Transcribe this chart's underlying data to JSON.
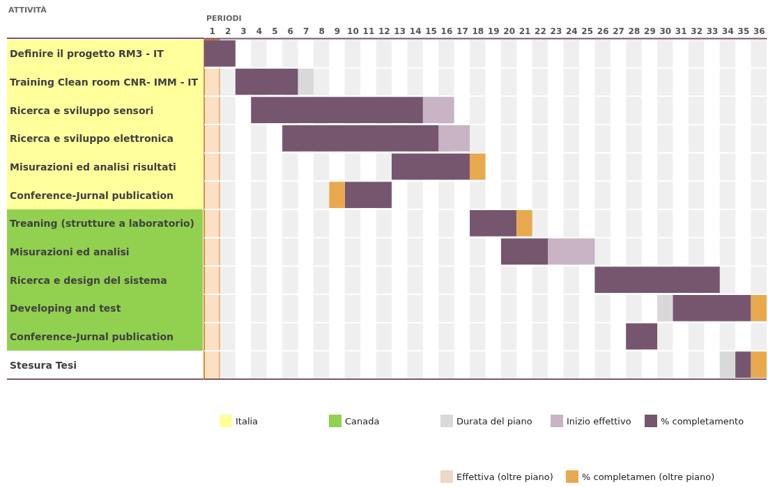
{
  "chart_data": {
    "type": "bar",
    "orientation": "horizontal",
    "xlabel": "PERIODI",
    "ylabel": "ATTIVITÀ",
    "categories": [
      "Definire il progetto RM3 - IT",
      "Training Clean room CNR- IMM - IT",
      "Ricerca e sviluppo sensori",
      "Ricerca e sviluppo elettronica",
      "Misurazioni ed analisi risultati",
      "Conference-Jurnal publication",
      "Treaning (strutture a laboratorio)",
      "Misurazioni ed analisi",
      "Ricerca e design del sistema",
      "Developing and test",
      "Conference-Jurnal publication",
      "Stesura Tesi"
    ],
    "xlim": [
      0,
      36
    ],
    "xticks": [
      {
        "value": 0.5,
        "label": "1"
      },
      {
        "value": 1.5,
        "label": "2"
      },
      {
        "value": 2.5,
        "label": "3"
      },
      {
        "value": 3.5,
        "label": "4"
      },
      {
        "value": 4.5,
        "label": "5"
      },
      {
        "value": 5.5,
        "label": "6"
      },
      {
        "value": 6.5,
        "label": "7"
      },
      {
        "value": 7.5,
        "label": "8"
      },
      {
        "value": 8.5,
        "label": "9"
      },
      {
        "value": 9.5,
        "label": "10"
      },
      {
        "value": 10.5,
        "label": "11"
      },
      {
        "value": 11.5,
        "label": "12"
      },
      {
        "value": 12.5,
        "label": "13"
      },
      {
        "value": 13.5,
        "label": "14"
      },
      {
        "value": 14.5,
        "label": "15"
      },
      {
        "value": 15.5,
        "label": "16"
      },
      {
        "value": 16.5,
        "label": "17"
      },
      {
        "value": 17.5,
        "label": "18"
      },
      {
        "value": 18.5,
        "label": "19"
      },
      {
        "value": 19.5,
        "label": "20"
      },
      {
        "value": 20.5,
        "label": "21"
      },
      {
        "value": 21.5,
        "label": "22"
      },
      {
        "value": 22.5,
        "label": "23"
      },
      {
        "value": 23.5,
        "label": "24"
      },
      {
        "value": 24.5,
        "label": "25"
      },
      {
        "value": 25.5,
        "label": "26"
      },
      {
        "value": 26.5,
        "label": "27"
      },
      {
        "value": 27.5,
        "label": "28"
      },
      {
        "value": 28.5,
        "label": "29"
      },
      {
        "value": 29.5,
        "label": "30"
      },
      {
        "value": 30.5,
        "label": "31"
      },
      {
        "value": 31.5,
        "label": "32"
      },
      {
        "value": 32.5,
        "label": "33"
      },
      {
        "value": 33.5,
        "label": "34"
      },
      {
        "value": 34.5,
        "label": "35"
      },
      {
        "value": 35.5,
        "label": "36"
      }
    ],
    "series": [
      {
        "name": "Italia",
        "color": "#ffff9c",
        "values": [
          null,
          null,
          null,
          null,
          null,
          null,
          null,
          null,
          null,
          null,
          null,
          null
        ]
      },
      {
        "name": "Canada",
        "color": "#92d050",
        "values": [
          null,
          null,
          null,
          null,
          null,
          null,
          null,
          null,
          null,
          null,
          null,
          null
        ]
      },
      {
        "name": "Durata del piano",
        "color": "#d9d9d9",
        "base": [
          null,
          6,
          null,
          null,
          null,
          null,
          null,
          null,
          null,
          29,
          null,
          33
        ],
        "values": [
          null,
          1,
          null,
          null,
          null,
          null,
          null,
          null,
          null,
          1,
          null,
          1
        ]
      },
      {
        "name": "Inizio effettivo",
        "color": "#c8b4c4",
        "base": [
          null,
          null,
          14,
          15,
          null,
          null,
          null,
          22,
          null,
          null,
          null,
          null
        ],
        "values": [
          null,
          null,
          2,
          2,
          null,
          null,
          null,
          3,
          null,
          null,
          null,
          null
        ]
      },
      {
        "name": "% completamento",
        "color": "#76566f",
        "base": [
          0,
          2,
          3,
          5,
          12,
          9,
          17,
          19,
          25,
          30,
          27,
          34
        ],
        "values": [
          2,
          4,
          11,
          10,
          5,
          3,
          3,
          3,
          8,
          5,
          2,
          1
        ]
      },
      {
        "name": "Effettiva (oltre piano)",
        "color": "#ead9c6",
        "base": [
          null,
          null,
          null,
          null,
          null,
          null,
          null,
          null,
          null,
          null,
          null,
          null
        ],
        "values": [
          null,
          null,
          null,
          null,
          null,
          null,
          null,
          null,
          null,
          null,
          null,
          null
        ]
      },
      {
        "name": "% completamen (oltre piano)",
        "color": "#e8a94e",
        "base": [
          null,
          null,
          null,
          null,
          17,
          8,
          20,
          null,
          null,
          35,
          null,
          35
        ],
        "values": [
          null,
          null,
          null,
          null,
          1,
          1,
          1,
          null,
          null,
          1,
          null,
          1
        ]
      }
    ],
    "bands": [
      {
        "axis": "x",
        "from": 0,
        "to": 1,
        "color": "#fbe0c4"
      },
      {
        "axis": "x",
        "from": 1,
        "to": 2,
        "color": "#efefef"
      },
      {
        "axis": "x",
        "from": 3,
        "to": 4,
        "color": "#efefef"
      },
      {
        "axis": "x",
        "from": 5,
        "to": 6,
        "color": "#efefef"
      },
      {
        "axis": "x",
        "from": 7,
        "to": 8,
        "color": "#efefef"
      },
      {
        "axis": "x",
        "from": 9,
        "to": 10,
        "color": "#efefef"
      },
      {
        "axis": "x",
        "from": 11,
        "to": 12,
        "color": "#efefef"
      },
      {
        "axis": "x",
        "from": 13,
        "to": 14,
        "color": "#efefef"
      },
      {
        "axis": "x",
        "from": 15,
        "to": 16,
        "color": "#efefef"
      },
      {
        "axis": "x",
        "from": 17,
        "to": 18,
        "color": "#efefef"
      },
      {
        "axis": "x",
        "from": 19,
        "to": 20,
        "color": "#efefef"
      },
      {
        "axis": "x",
        "from": 21,
        "to": 22,
        "color": "#efefef"
      },
      {
        "axis": "x",
        "from": 23,
        "to": 24,
        "color": "#efefef"
      },
      {
        "axis": "x",
        "from": 25,
        "to": 26,
        "color": "#efefef"
      },
      {
        "axis": "x",
        "from": 27,
        "to": 28,
        "color": "#efefef"
      },
      {
        "axis": "x",
        "from": 29,
        "to": 30,
        "color": "#efefef"
      },
      {
        "axis": "x",
        "from": 31,
        "to": 32,
        "color": "#efefef"
      },
      {
        "axis": "x",
        "from": 33,
        "to": 34,
        "color": "#efefef"
      },
      {
        "axis": "x",
        "from": 35,
        "to": 36,
        "color": "#efefef"
      }
    ],
    "legend": "bottom"
  }
}
